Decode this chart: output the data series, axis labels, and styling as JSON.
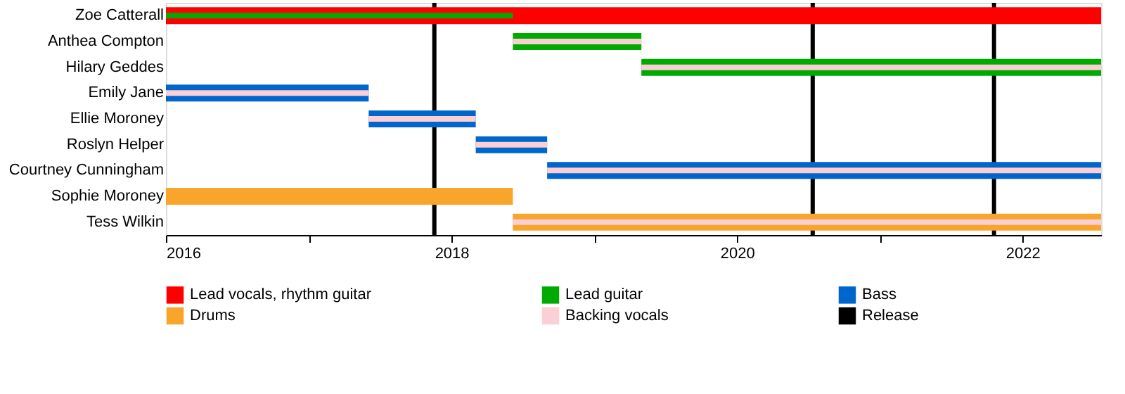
{
  "chart_data": {
    "type": "bar",
    "orientation": "horizontal",
    "categories": [
      "Zoe Catterall",
      "Anthea Compton",
      "Hilary Geddes",
      "Emily Jane",
      "Ellie Moroney",
      "Roslyn Helper",
      "Courtney Cunningham",
      "Sophie Moroney",
      "Tess Wilkin"
    ],
    "series": [
      {
        "name": "Lead vocals, rhythm guitar",
        "color": "#ff0000",
        "base": [
          2016,
          null,
          null,
          null,
          null,
          null,
          null,
          null,
          null
        ],
        "values": [
          6.55,
          null,
          null,
          null,
          null,
          null,
          null,
          null,
          null
        ]
      },
      {
        "name": "Lead guitar",
        "color": "#00aa00",
        "base": [
          2016,
          2018.43,
          2019.33,
          null,
          null,
          null,
          null,
          null,
          null
        ],
        "values": [
          2.43,
          0.9,
          3.22,
          null,
          null,
          null,
          null,
          null,
          null
        ]
      },
      {
        "name": "Bass",
        "color": "#0066cc",
        "base": [
          null,
          null,
          null,
          2016,
          2017.42,
          2018.17,
          2018.67,
          null,
          null
        ],
        "values": [
          null,
          null,
          null,
          1.42,
          0.75,
          0.5,
          3.88,
          null,
          null
        ]
      },
      {
        "name": "Drums",
        "color": "#f9a52c",
        "base": [
          null,
          null,
          null,
          null,
          null,
          null,
          null,
          2016,
          2018.43
        ],
        "values": [
          null,
          null,
          null,
          null,
          null,
          null,
          null,
          2.43,
          4.12
        ]
      },
      {
        "name": "Backing vocals",
        "color": "#fbcfd4",
        "base": [
          null,
          2018.43,
          2019.33,
          2016,
          2017.42,
          2018.17,
          2018.67,
          null,
          2018.43
        ],
        "values": [
          null,
          0.9,
          3.22,
          1.42,
          0.75,
          0.5,
          3.88,
          null,
          4.12
        ]
      }
    ],
    "ref_lines": [
      {
        "axis": "x",
        "value": 2017.88,
        "label": "Release",
        "color": "#000000"
      },
      {
        "axis": "x",
        "value": 2020.53,
        "color": "#000000"
      },
      {
        "axis": "x",
        "value": 2021.8,
        "color": "#000000"
      }
    ],
    "xlim": [
      2016,
      2022.55
    ],
    "xticks": [
      2016,
      {
        "value": 2017,
        "label": null
      },
      2018,
      {
        "value": 2019,
        "label": null
      },
      2020,
      {
        "value": 2021,
        "label": null
      },
      2022
    ],
    "grid": false,
    "legend": "bottom"
  }
}
